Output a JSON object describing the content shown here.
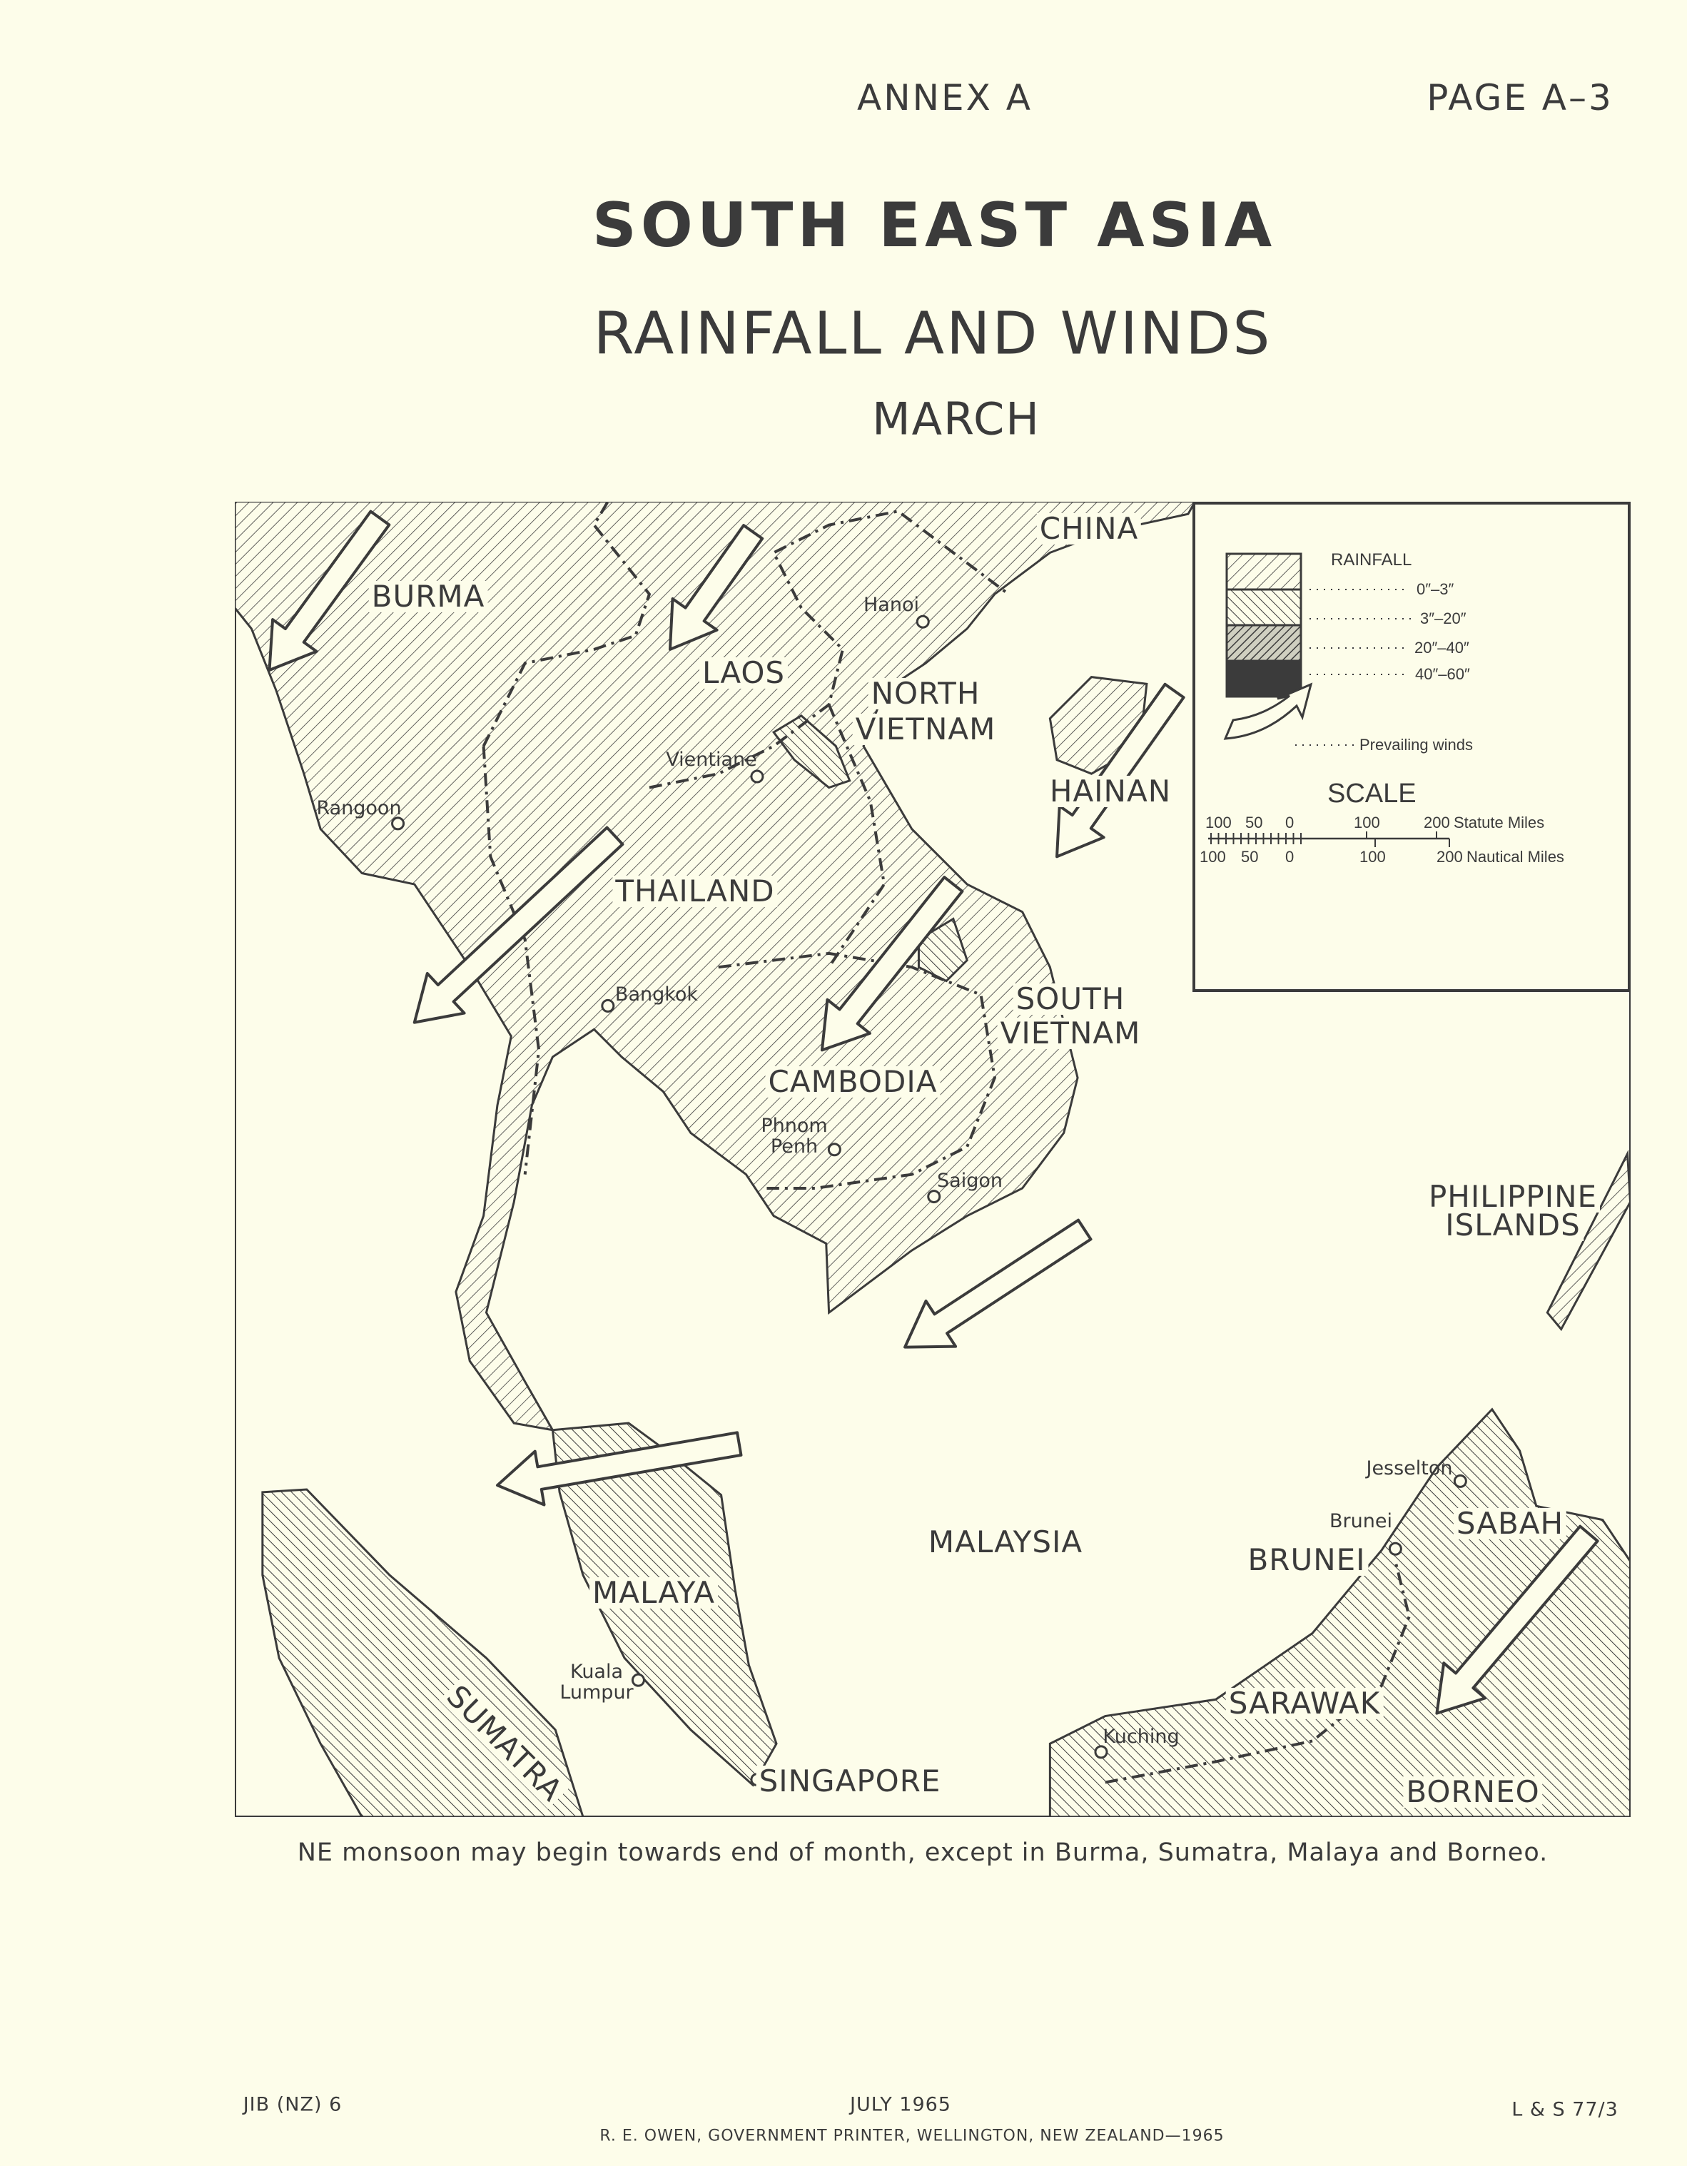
{
  "header": {
    "annex": "ANNEX A",
    "page": "PAGE A–3"
  },
  "title": {
    "line1": "SOUTH EAST ASIA",
    "line2": "RAINFALL AND WINDS",
    "line3": "MARCH"
  },
  "map": {
    "regions": {
      "china": "CHINA",
      "burma": "BURMA",
      "laos": "LAOS",
      "north_vietnam_1": "NORTH",
      "north_vietnam_2": "VIETNAM",
      "hainan": "HAINAN",
      "thailand": "THAILAND",
      "south_vietnam_1": "SOUTH",
      "south_vietnam_2": "VIETNAM",
      "cambodia": "CAMBODIA",
      "philippines_1": "PHILIPPINE",
      "philippines_2": "ISLANDS",
      "malaysia": "MALAYSIA",
      "brunei": "BRUNEI",
      "sabah": "SABAH",
      "malaya": "MALAYA",
      "sarawak": "SARAWAK",
      "sumatra": "SUMATRA",
      "singapore": "SINGAPORE",
      "borneo": "BORNEO"
    },
    "cities": {
      "hanoi": "Hanoi",
      "vientiane": "Vientiane",
      "rangoon": "Rangoon",
      "bangkok": "Bangkok",
      "phnom_penh_1": "Phnom",
      "phnom_penh_2": "Penh",
      "saigon": "Saigon",
      "jesselton": "Jesselton",
      "brunei": "Brunei",
      "kuala_lumpur_1": "Kuala",
      "kuala_lumpur_2": "Lumpur",
      "kuching": "Kuching"
    },
    "colors": {
      "paper": "#fdfdea",
      "ink": "#3b3b3b"
    }
  },
  "legend": {
    "title": "RAINFALL",
    "classes": [
      {
        "label": "0″–3″",
        "pattern": "light-hatch"
      },
      {
        "label": "3″–20″",
        "pattern": "back-hatch"
      },
      {
        "label": "20″–40″",
        "pattern": "dense-hatch"
      },
      {
        "label": "40″–60″",
        "pattern": "solid"
      }
    ],
    "winds_label": "Prevailing winds",
    "winds_icon": "curved-arrow-icon",
    "scale": {
      "title": "SCALE",
      "statute_ticks": [
        "100",
        "50",
        "0",
        "100",
        "200"
      ],
      "statute_unit": "Statute Miles",
      "nautical_ticks": [
        "100",
        "50",
        "0",
        "100",
        "200"
      ],
      "nautical_unit": "Nautical Miles"
    }
  },
  "caption": "NE monsoon may begin towards end of month, except in Burma, Sumatra, Malaya and Borneo.",
  "footer": {
    "left": "JIB (NZ) 6",
    "center": "JULY 1965",
    "right": "L & S 77/3",
    "printer": "R. E. OWEN, GOVERNMENT PRINTER, WELLINGTON, NEW ZEALAND—1965"
  }
}
